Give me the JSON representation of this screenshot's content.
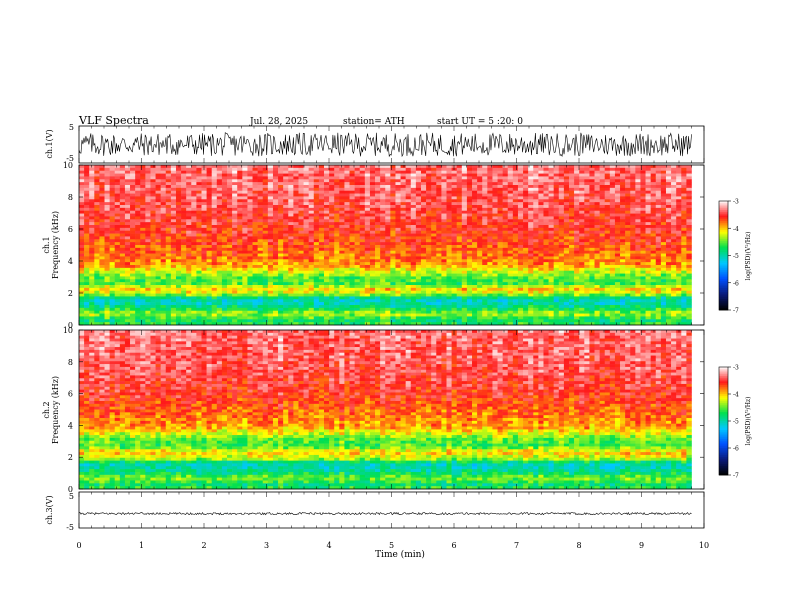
{
  "header": {
    "title": "VLF  Spectra",
    "date": "Jul.  28, 2025",
    "station": "station= ATH",
    "start": "start  UT  =    5  :20: 0"
  },
  "colors": {
    "background": "#ffffff",
    "axis": "#000000",
    "waveform": "#000000",
    "colormap": [
      "#000000",
      "#0a1a7a",
      "#0050ff",
      "#00c8ff",
      "#00e050",
      "#ffff00",
      "#ff1a1a",
      "#ffffff"
    ]
  },
  "chart_data": [
    {
      "type": "line",
      "name": "ch1-waveform",
      "ylabel": "ch.1(V)",
      "ylim": [
        -5,
        5
      ],
      "y_ticks": [
        "5",
        "-5"
      ],
      "xlim": [
        0,
        10
      ],
      "data_extent_min": 9.8,
      "amplitude_approx": 3.2
    },
    {
      "type": "heatmap",
      "name": "ch1-spectrogram",
      "ylabel_channel": "ch.1",
      "ylabel": "Frequency  (kHz)",
      "ylim": [
        0,
        10
      ],
      "y_ticks": [
        "0",
        "2",
        "4",
        "6",
        "8",
        "10"
      ],
      "xlim": [
        0,
        10
      ],
      "data_extent_min": 9.8,
      "colorbar_label": "log(PSD)(V²/Hz)",
      "colorbar_range": [
        -7,
        -3
      ],
      "colorbar_ticks": [
        "-3",
        "-4",
        "-5",
        "-6",
        "-7"
      ],
      "frequency_profile_khz": [
        {
          "f": 0.0,
          "level": -4.6
        },
        {
          "f": 0.3,
          "level": -4.8
        },
        {
          "f": 0.7,
          "level": -4.3
        },
        {
          "f": 1.0,
          "level": -4.7
        },
        {
          "f": 1.3,
          "level": -5.0
        },
        {
          "f": 1.6,
          "level": -5.1
        },
        {
          "f": 1.9,
          "level": -4.4
        },
        {
          "f": 2.2,
          "level": -4.0
        },
        {
          "f": 2.6,
          "level": -4.6
        },
        {
          "f": 3.0,
          "level": -4.5
        },
        {
          "f": 3.4,
          "level": -4.2
        },
        {
          "f": 3.7,
          "level": -3.9
        },
        {
          "f": 4.5,
          "level": -3.75
        },
        {
          "f": 6.0,
          "level": -3.55
        },
        {
          "f": 8.0,
          "level": -3.4
        },
        {
          "f": 10.0,
          "level": -3.35
        }
      ]
    },
    {
      "type": "heatmap",
      "name": "ch2-spectrogram",
      "ylabel_channel": "ch.2",
      "ylabel": "Frequency  (kHz)",
      "ylim": [
        0,
        10
      ],
      "y_ticks": [
        "0",
        "2",
        "4",
        "6",
        "8",
        "10"
      ],
      "xlim": [
        0,
        10
      ],
      "data_extent_min": 9.8,
      "colorbar_label": "log(PSD)(V²/Hz)",
      "colorbar_range": [
        -7,
        -3
      ],
      "colorbar_ticks": [
        "-3",
        "-4",
        "-5",
        "-6",
        "-7"
      ],
      "frequency_profile_khz": [
        {
          "f": 0.0,
          "level": -4.6
        },
        {
          "f": 0.3,
          "level": -4.8
        },
        {
          "f": 0.7,
          "level": -4.4
        },
        {
          "f": 1.0,
          "level": -4.8
        },
        {
          "f": 1.3,
          "level": -5.0
        },
        {
          "f": 1.6,
          "level": -5.05
        },
        {
          "f": 1.9,
          "level": -4.3
        },
        {
          "f": 2.3,
          "level": -4.0
        },
        {
          "f": 2.7,
          "level": -4.6
        },
        {
          "f": 3.1,
          "level": -4.5
        },
        {
          "f": 3.5,
          "level": -4.2
        },
        {
          "f": 3.9,
          "level": -3.9
        },
        {
          "f": 4.8,
          "level": -3.75
        },
        {
          "f": 6.0,
          "level": -3.55
        },
        {
          "f": 8.0,
          "level": -3.4
        },
        {
          "f": 10.0,
          "level": -3.35
        }
      ]
    },
    {
      "type": "line",
      "name": "ch3-waveform",
      "ylabel": "ch.3(V)",
      "ylim": [
        -5,
        5
      ],
      "y_ticks": [
        "5",
        "-5"
      ],
      "xlim": [
        0,
        10
      ],
      "data_extent_min": 9.8,
      "amplitude_approx": 0.3,
      "offset_approx": -1.0
    },
    {
      "type": "axis",
      "name": "time-axis",
      "xlabel": "Time  (min)",
      "xlim": [
        0,
        10
      ],
      "x_ticks": [
        "0",
        "1",
        "2",
        "3",
        "4",
        "5",
        "6",
        "7",
        "8",
        "9",
        "10"
      ]
    }
  ]
}
